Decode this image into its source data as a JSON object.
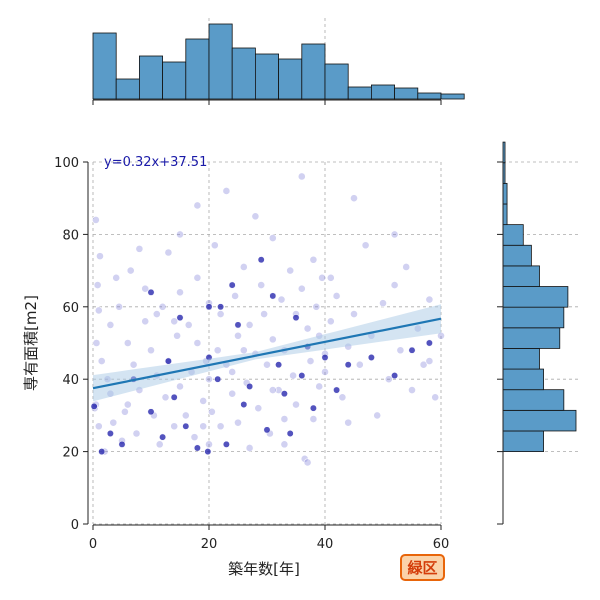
{
  "chart_data": {
    "type": "scatter",
    "xlabel": "築年数[年]",
    "ylabel": "専有面積[m2]",
    "xlim": [
      0,
      60
    ],
    "ylim": [
      0,
      100
    ],
    "x_ticks": [
      0,
      20,
      40,
      60
    ],
    "y_ticks": [
      0,
      20,
      40,
      60,
      80,
      100
    ],
    "grid": true,
    "regression": {
      "label": "y=0.32x+37.51",
      "slope": 0.32,
      "intercept": 37.51,
      "color": "#1f77b4",
      "band_color": "#a9c9e6"
    },
    "point_color": "#7a7ad6",
    "dark_point_color": "#1a1aa8",
    "hist_color": "#5a9bc8",
    "x_histogram": {
      "bin_width": 4,
      "bin_start": 0,
      "counts": [
        66,
        20,
        43,
        37,
        60,
        75,
        51,
        45,
        40,
        55,
        35,
        12,
        14,
        11,
        6,
        5
      ]
    },
    "y_histogram": {
      "bin_width": 5.7,
      "bin_start": 20,
      "counts": [
        10,
        18,
        15,
        10,
        9,
        14,
        15,
        16,
        9,
        7,
        5,
        1,
        1,
        0.5,
        0.5
      ]
    },
    "scatter_points": [
      [
        0.5,
        84
      ],
      [
        0.8,
        66
      ],
      [
        1,
        59
      ],
      [
        1.2,
        74
      ],
      [
        0.3,
        32
      ],
      [
        0.5,
        33
      ],
      [
        1,
        27
      ],
      [
        0.6,
        50
      ],
      [
        1.5,
        45
      ],
      [
        2,
        20
      ],
      [
        2.5,
        40
      ],
      [
        3,
        36
      ],
      [
        3.5,
        28
      ],
      [
        4,
        68
      ],
      [
        4.5,
        60
      ],
      [
        5,
        23
      ],
      [
        5.5,
        31
      ],
      [
        6,
        50
      ],
      [
        6.5,
        70
      ],
      [
        7,
        44
      ],
      [
        7.5,
        25
      ],
      [
        8,
        37
      ],
      [
        9,
        65
      ],
      [
        9,
        56
      ],
      [
        10,
        48
      ],
      [
        10.5,
        30
      ],
      [
        11,
        41
      ],
      [
        11.5,
        22
      ],
      [
        12,
        60
      ],
      [
        12.5,
        35
      ],
      [
        13,
        75
      ],
      [
        13,
        45
      ],
      [
        14,
        27
      ],
      [
        14.5,
        52
      ],
      [
        15,
        38
      ],
      [
        15,
        64
      ],
      [
        16,
        30
      ],
      [
        16.5,
        55
      ],
      [
        17,
        42
      ],
      [
        17.5,
        24
      ],
      [
        18,
        68
      ],
      [
        18,
        50
      ],
      [
        19,
        34
      ],
      [
        19.5,
        45
      ],
      [
        20,
        61
      ],
      [
        20,
        40
      ],
      [
        20,
        22
      ],
      [
        20.5,
        31
      ],
      [
        21,
        77
      ],
      [
        21.5,
        48
      ],
      [
        22,
        58
      ],
      [
        22,
        27
      ],
      [
        23,
        92
      ],
      [
        23,
        44
      ],
      [
        24,
        36
      ],
      [
        24.5,
        63
      ],
      [
        25,
        52
      ],
      [
        25,
        28
      ],
      [
        26,
        71
      ],
      [
        26.5,
        39
      ],
      [
        27,
        55
      ],
      [
        27,
        21
      ],
      [
        28,
        47
      ],
      [
        28.5,
        32
      ],
      [
        29,
        66
      ],
      [
        29.5,
        58
      ],
      [
        30,
        44
      ],
      [
        30.5,
        25
      ],
      [
        31,
        79
      ],
      [
        31,
        51
      ],
      [
        32,
        37
      ],
      [
        32.5,
        62
      ],
      [
        33,
        48
      ],
      [
        33,
        22
      ],
      [
        34,
        70
      ],
      [
        34.5,
        41
      ],
      [
        35,
        58
      ],
      [
        35,
        33
      ],
      [
        36,
        96
      ],
      [
        36,
        65
      ],
      [
        36.5,
        18
      ],
      [
        37,
        54
      ],
      [
        37.5,
        45
      ],
      [
        38,
        73
      ],
      [
        38,
        29
      ],
      [
        38.5,
        60
      ],
      [
        39,
        52
      ],
      [
        39,
        38
      ],
      [
        39.5,
        68
      ],
      [
        40,
        47
      ],
      [
        40,
        42
      ],
      [
        41,
        56
      ],
      [
        42,
        63
      ],
      [
        43,
        35
      ],
      [
        44,
        49
      ],
      [
        45,
        90
      ],
      [
        45,
        58
      ],
      [
        46,
        44
      ],
      [
        47,
        77
      ],
      [
        48,
        52
      ],
      [
        49,
        30
      ],
      [
        50,
        61
      ],
      [
        51,
        40
      ],
      [
        52,
        66
      ],
      [
        53,
        48
      ],
      [
        54,
        71
      ],
      [
        55,
        37
      ],
      [
        56,
        54
      ],
      [
        57,
        44
      ],
      [
        58,
        62
      ],
      [
        59,
        35
      ],
      [
        60,
        52
      ],
      [
        3,
        55
      ],
      [
        6,
        33
      ],
      [
        8,
        76
      ],
      [
        11,
        58
      ],
      [
        15,
        80
      ],
      [
        19,
        27
      ],
      [
        24,
        42
      ],
      [
        28,
        85
      ],
      [
        33,
        29
      ],
      [
        37,
        17
      ],
      [
        41,
        68
      ],
      [
        44,
        28
      ],
      [
        52,
        80
      ],
      [
        58,
        45
      ],
      [
        18,
        88
      ],
      [
        14,
        56
      ],
      [
        26,
        48
      ],
      [
        31,
        37
      ]
    ],
    "dark_points": [
      [
        0.2,
        32.5
      ],
      [
        1.5,
        20
      ],
      [
        3,
        25
      ],
      [
        5,
        22
      ],
      [
        7,
        40
      ],
      [
        10,
        31
      ],
      [
        12,
        24
      ],
      [
        14,
        35
      ],
      [
        16,
        27
      ],
      [
        18,
        21
      ],
      [
        19.8,
        20
      ],
      [
        20,
        46
      ],
      [
        21.5,
        40
      ],
      [
        23,
        22
      ],
      [
        25,
        55
      ],
      [
        27,
        38
      ],
      [
        29,
        73
      ],
      [
        30,
        26
      ],
      [
        32,
        44
      ],
      [
        34,
        25
      ],
      [
        36,
        41
      ],
      [
        38,
        32
      ],
      [
        40,
        46
      ],
      [
        42,
        37
      ],
      [
        44,
        44
      ],
      [
        48,
        46
      ],
      [
        52,
        41
      ],
      [
        55,
        48
      ],
      [
        58,
        50
      ],
      [
        10,
        64
      ],
      [
        15,
        57
      ],
      [
        22,
        60
      ],
      [
        26,
        33
      ],
      [
        31,
        63
      ],
      [
        35,
        57
      ],
      [
        37,
        49
      ],
      [
        20,
        60
      ],
      [
        24,
        66
      ],
      [
        13,
        45
      ],
      [
        33,
        36
      ]
    ]
  },
  "badge": {
    "label": "緑区"
  }
}
